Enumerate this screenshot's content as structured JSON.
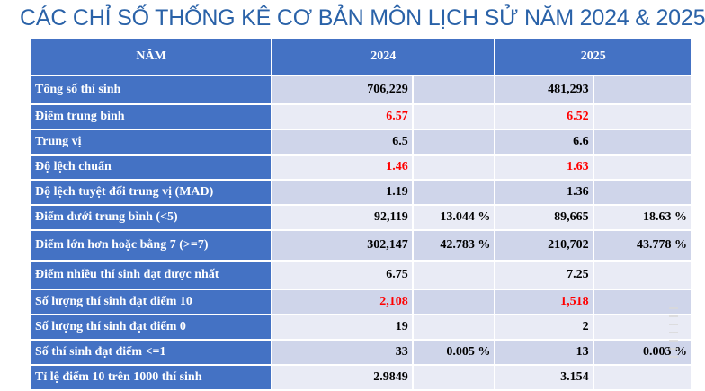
{
  "title": "CÁC CHỈ SỐ THỐNG KÊ CƠ BẢN MÔN LỊCH SỬ NĂM 2024 & 2025",
  "header": {
    "label": "NĂM",
    "y1": "2024",
    "y2": "2025"
  },
  "rows": [
    {
      "label": "Tổng số thí sinh",
      "v1": "706,229",
      "p1": "",
      "v2": "481,293",
      "p2": ""
    },
    {
      "label": "Điểm trung bình",
      "v1": "6.57",
      "p1": "",
      "v2": "6.52",
      "p2": ""
    },
    {
      "label": "Trung vị",
      "v1": "6.5",
      "p1": "",
      "v2": "6.6",
      "p2": ""
    },
    {
      "label": "Độ lệch chuẩn",
      "v1": "1.46",
      "p1": "",
      "v2": "1.63",
      "p2": ""
    },
    {
      "label": "Độ lệch tuyệt đối trung vị (MAD)",
      "v1": "1.19",
      "p1": "",
      "v2": "1.36",
      "p2": ""
    },
    {
      "label": "Điểm dưới trung bình (<5)",
      "v1": "92,119",
      "p1": "13.044 %",
      "v2": "89,665",
      "p2": "18.63 %"
    },
    {
      "label": "Điểm lớn hơn hoặc bằng 7 (>=7)",
      "v1": "302,147",
      "p1": "42.783 %",
      "v2": "210,702",
      "p2": "43.778 %"
    },
    {
      "label": "Điểm nhiều thí sinh đạt được nhất",
      "v1": "6.75",
      "p1": "",
      "v2": "7.25",
      "p2": ""
    },
    {
      "label": "Số lượng thí sinh đạt điểm 10",
      "v1": "2,108",
      "p1": "",
      "v2": "1,518",
      "p2": ""
    },
    {
      "label": "Số lượng thí sinh đạt điểm 0",
      "v1": "19",
      "p1": "",
      "v2": "2",
      "p2": ""
    },
    {
      "label": "Số thí sinh đạt điểm <=1",
      "v1": "33",
      "p1": "0.005 %",
      "v2": "13",
      "p2": "0.003 %"
    },
    {
      "label": "Tỉ lệ điểm 10 trên 1000 thí sinh",
      "v1": "2.9849",
      "p1": "",
      "v2": "3.154",
      "p2": ""
    }
  ],
  "colors": {
    "header_bg": "#4472c4",
    "row_odd": "#cfd5ea",
    "row_even": "#e9ebf5",
    "highlight": "#ff0000",
    "title": "#2a62a8"
  }
}
